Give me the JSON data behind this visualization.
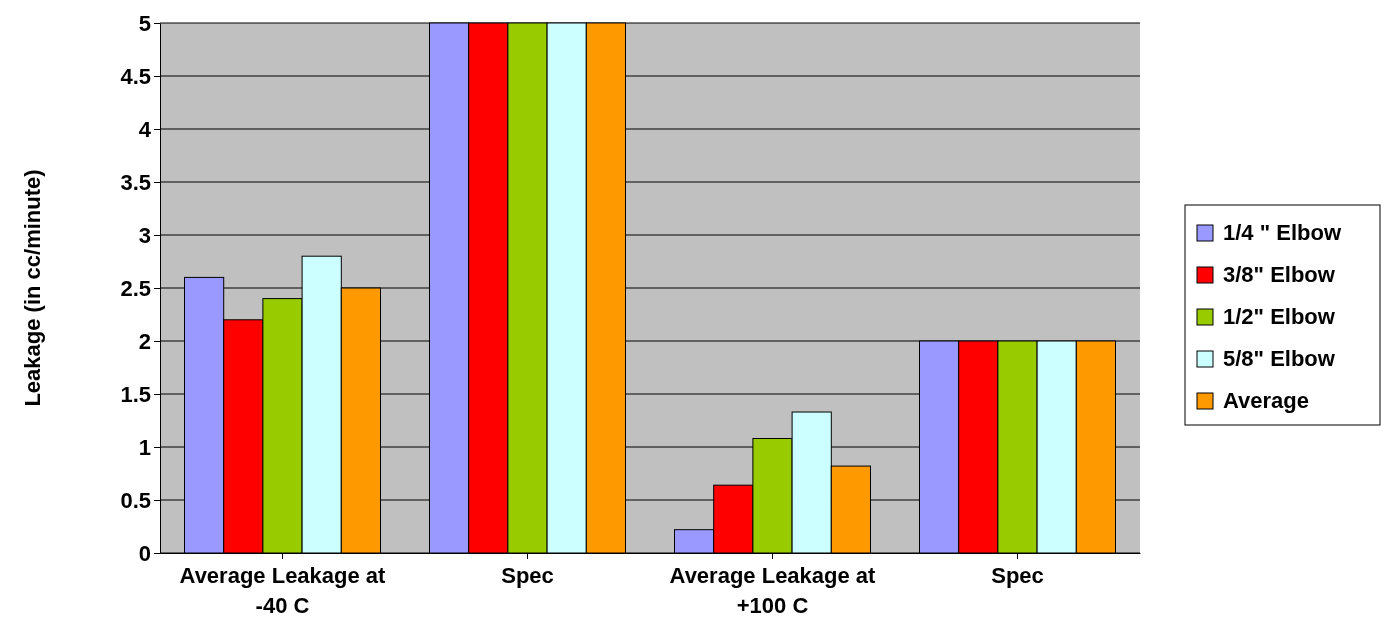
{
  "chart_data": {
    "type": "bar",
    "ylabel": "Leakage (in cc/minute)",
    "categories": [
      "Average Leakage at -40 C",
      "Spec",
      "Average Leakage at +100 C",
      "Spec"
    ],
    "series": [
      {
        "name": "1/4 \" Elbow",
        "color": "#9999ff",
        "values": [
          2.6,
          5,
          0.22,
          2
        ]
      },
      {
        "name": "3/8\" Elbow",
        "color": "#ff0000",
        "values": [
          2.2,
          5,
          0.64,
          2
        ]
      },
      {
        "name": "1/2\" Elbow",
        "color": "#99cc00",
        "values": [
          2.4,
          5,
          1.08,
          2
        ]
      },
      {
        "name": "5/8\" Elbow",
        "color": "#ccffff",
        "values": [
          2.8,
          5,
          1.33,
          2
        ]
      },
      {
        "name": "Average",
        "color": "#ff9900",
        "values": [
          2.5,
          5,
          0.82,
          2
        ]
      }
    ],
    "ylim": [
      0,
      5
    ],
    "yticks": [
      0,
      0.5,
      1,
      1.5,
      2,
      2.5,
      3,
      3.5,
      4,
      4.5,
      5
    ],
    "grid": "y",
    "legend": "right"
  }
}
